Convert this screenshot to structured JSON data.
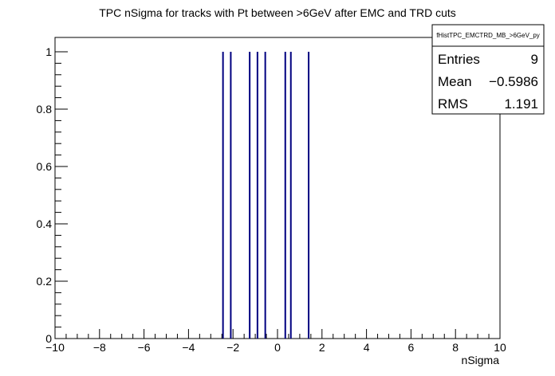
{
  "chart_data": {
    "type": "bar",
    "title": "TPC nSigma for tracks with Pt between >6GeV after EMC and TRD cuts",
    "xlabel": "nSigma",
    "ylabel": "",
    "xlim": [
      -10,
      10
    ],
    "ylim": [
      0,
      1.05
    ],
    "x_ticks": [
      "−10",
      "−8",
      "−6",
      "−4",
      "−2",
      "0",
      "2",
      "4",
      "6",
      "8",
      "10"
    ],
    "y_ticks": [
      "0",
      "0.2",
      "0.4",
      "0.6",
      "0.8",
      "1"
    ],
    "series": [
      {
        "x": [
          -2.45,
          -2.1,
          -1.25,
          -0.9,
          -0.55,
          0.35,
          0.6,
          1.4
        ],
        "values": [
          1,
          1,
          1,
          1,
          1,
          1,
          1,
          1
        ],
        "color": "#000080"
      }
    ],
    "legend_position": "top-right",
    "grid": false
  },
  "stats": {
    "name": "fHistTPC_EMCTRD_MB_>6GeV_py",
    "rows": [
      {
        "label": "Entries",
        "value": "9"
      },
      {
        "label": "Mean",
        "value": "−0.5986"
      },
      {
        "label": "RMS",
        "value": "1.191"
      }
    ]
  }
}
